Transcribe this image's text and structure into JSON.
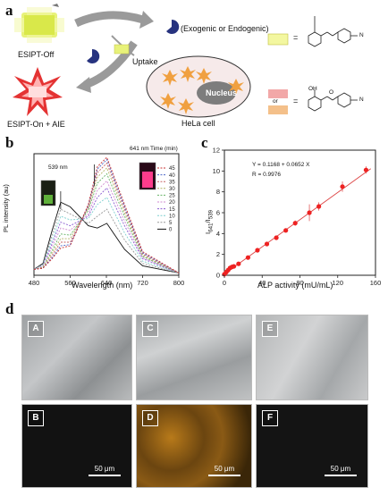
{
  "panels": {
    "a": "a",
    "b": "b",
    "c": "c",
    "d": "d"
  },
  "schematic": {
    "esipt_off": "ESIPT-Off",
    "esipt_on": "ESIPT-On + AIE",
    "exo_endo": "(Exogenic or Endogenic)",
    "uptake": "Uptake",
    "nucleus": "Nucleus",
    "hela": "HeLa cell",
    "equals1": "=",
    "equals2": "=",
    "or": "or",
    "chem_oh": "OH",
    "chem_o": "O",
    "chem_n": "N"
  },
  "panel_b": {
    "ylabel": "PL intensity (au)",
    "xlabel": "Wavelength (nm)",
    "ann_539": "539 nm",
    "ann_641": "641 nm",
    "legend_title": "Time (min)",
    "legend_items": [
      "45",
      "40",
      "35",
      "30",
      "25",
      "20",
      "15",
      "10",
      "5",
      "0"
    ],
    "xticks": [
      "480",
      "560",
      "640",
      "720",
      "800"
    ]
  },
  "panel_c": {
    "ylabel_main": "I",
    "ylabel_sub1": "641",
    "ylabel_slash": "/I",
    "ylabel_sub2": "539",
    "xlabel": "ALP activity (mU/mL)",
    "equation": "Y = 0.1168 + 0.0652 X",
    "r_value": "R = 0.9976",
    "yticks": [
      "0",
      "2",
      "4",
      "6",
      "8",
      "10",
      "12"
    ],
    "xticks": [
      "0",
      "40",
      "80",
      "120",
      "160"
    ]
  },
  "panel_d": {
    "labels": [
      "A",
      "B",
      "C",
      "D",
      "E",
      "F"
    ],
    "scale": "50 μm"
  },
  "chart_data": [
    {
      "type": "line",
      "xlabel": "Wavelength (nm)",
      "ylabel": "PL intensity (au)",
      "xlim": [
        480,
        800
      ],
      "legend_title": "Time (min)",
      "series": [
        {
          "name": "0",
          "color": "#111111",
          "values": [
            [
              480,
              0.05
            ],
            [
              500,
              0.1
            ],
            [
              520,
              0.38
            ],
            [
              539,
              0.62
            ],
            [
              560,
              0.58
            ],
            [
              600,
              0.42
            ],
            [
              620,
              0.4
            ],
            [
              641,
              0.44
            ],
            [
              680,
              0.22
            ],
            [
              720,
              0.08
            ],
            [
              800,
              0.02
            ]
          ]
        },
        {
          "name": "5",
          "color": "#999999",
          "values": [
            [
              480,
              0.05
            ],
            [
              500,
              0.09
            ],
            [
              520,
              0.34
            ],
            [
              539,
              0.56
            ],
            [
              560,
              0.52
            ],
            [
              600,
              0.44
            ],
            [
              620,
              0.5
            ],
            [
              641,
              0.56
            ],
            [
              680,
              0.3
            ],
            [
              720,
              0.1
            ],
            [
              800,
              0.02
            ]
          ]
        },
        {
          "name": "10",
          "color": "#7fd0d0",
          "values": [
            [
              480,
              0.05
            ],
            [
              500,
              0.09
            ],
            [
              520,
              0.3
            ],
            [
              539,
              0.5
            ],
            [
              560,
              0.47
            ],
            [
              600,
              0.48
            ],
            [
              620,
              0.6
            ],
            [
              641,
              0.66
            ],
            [
              680,
              0.36
            ],
            [
              720,
              0.12
            ],
            [
              800,
              0.02
            ]
          ]
        },
        {
          "name": "15",
          "color": "#8a5ad0",
          "values": [
            [
              480,
              0.05
            ],
            [
              500,
              0.08
            ],
            [
              520,
              0.27
            ],
            [
              539,
              0.45
            ],
            [
              560,
              0.42
            ],
            [
              600,
              0.5
            ],
            [
              620,
              0.66
            ],
            [
              641,
              0.74
            ],
            [
              680,
              0.42
            ],
            [
              720,
              0.14
            ],
            [
              800,
              0.02
            ]
          ]
        },
        {
          "name": "20",
          "color": "#d08ad0",
          "values": [
            [
              480,
              0.05
            ],
            [
              500,
              0.08
            ],
            [
              520,
              0.24
            ],
            [
              539,
              0.4
            ],
            [
              560,
              0.38
            ],
            [
              600,
              0.52
            ],
            [
              620,
              0.72
            ],
            [
              641,
              0.8
            ],
            [
              680,
              0.46
            ],
            [
              720,
              0.15
            ],
            [
              800,
              0.02
            ]
          ]
        },
        {
          "name": "25",
          "color": "#66b366",
          "values": [
            [
              480,
              0.05
            ],
            [
              500,
              0.07
            ],
            [
              520,
              0.21
            ],
            [
              539,
              0.35
            ],
            [
              560,
              0.34
            ],
            [
              600,
              0.55
            ],
            [
              620,
              0.78
            ],
            [
              641,
              0.86
            ],
            [
              680,
              0.5
            ],
            [
              720,
              0.16
            ],
            [
              800,
              0.02
            ]
          ]
        },
        {
          "name": "30",
          "color": "#b3b366",
          "values": [
            [
              480,
              0.05
            ],
            [
              500,
              0.07
            ],
            [
              520,
              0.19
            ],
            [
              539,
              0.31
            ],
            [
              560,
              0.31
            ],
            [
              600,
              0.57
            ],
            [
              620,
              0.83
            ],
            [
              641,
              0.91
            ],
            [
              680,
              0.53
            ],
            [
              720,
              0.17
            ],
            [
              800,
              0.02
            ]
          ]
        },
        {
          "name": "35",
          "color": "#c86464",
          "values": [
            [
              480,
              0.05
            ],
            [
              500,
              0.06
            ],
            [
              520,
              0.17
            ],
            [
              539,
              0.28
            ],
            [
              560,
              0.28
            ],
            [
              600,
              0.58
            ],
            [
              620,
              0.87
            ],
            [
              641,
              0.95
            ],
            [
              680,
              0.56
            ],
            [
              720,
              0.18
            ],
            [
              800,
              0.02
            ]
          ]
        },
        {
          "name": "40",
          "color": "#4a64c8",
          "values": [
            [
              480,
              0.05
            ],
            [
              500,
              0.06
            ],
            [
              520,
              0.15
            ],
            [
              539,
              0.25
            ],
            [
              560,
              0.26
            ],
            [
              600,
              0.59
            ],
            [
              620,
              0.9
            ],
            [
              641,
              0.98
            ],
            [
              680,
              0.58
            ],
            [
              720,
              0.19
            ],
            [
              800,
              0.02
            ]
          ]
        },
        {
          "name": "45",
          "color": "#c83232",
          "values": [
            [
              480,
              0.05
            ],
            [
              500,
              0.06
            ],
            [
              520,
              0.14
            ],
            [
              539,
              0.23
            ],
            [
              560,
              0.25
            ],
            [
              600,
              0.6
            ],
            [
              620,
              0.92
            ],
            [
              641,
              1.0
            ],
            [
              680,
              0.6
            ],
            [
              720,
              0.2
            ],
            [
              800,
              0.02
            ]
          ]
        }
      ]
    },
    {
      "type": "scatter",
      "xlabel": "ALP activity (mU/mL)",
      "ylabel": "I641/I539",
      "xlim": [
        0,
        160
      ],
      "ylim": [
        0,
        12
      ],
      "fit": {
        "intercept": 0.1168,
        "slope": 0.0652
      },
      "points": [
        [
          0,
          0.1
        ],
        [
          2,
          0.3
        ],
        [
          4,
          0.5
        ],
        [
          6,
          0.7
        ],
        [
          8,
          0.8
        ],
        [
          10,
          0.85
        ],
        [
          15,
          1.1
        ],
        [
          25,
          1.7
        ],
        [
          35,
          2.4
        ],
        [
          45,
          3.0
        ],
        [
          55,
          3.6
        ],
        [
          65,
          4.3
        ],
        [
          75,
          5.0
        ],
        [
          90,
          6.0
        ],
        [
          100,
          6.6
        ],
        [
          125,
          8.5
        ],
        [
          150,
          10.1
        ]
      ],
      "errors": [
        0.1,
        0.1,
        0.1,
        0.1,
        0.1,
        0.1,
        0.1,
        0.15,
        0.15,
        0.2,
        0.2,
        0.2,
        0.25,
        0.8,
        0.4,
        0.5,
        0.35
      ]
    }
  ]
}
